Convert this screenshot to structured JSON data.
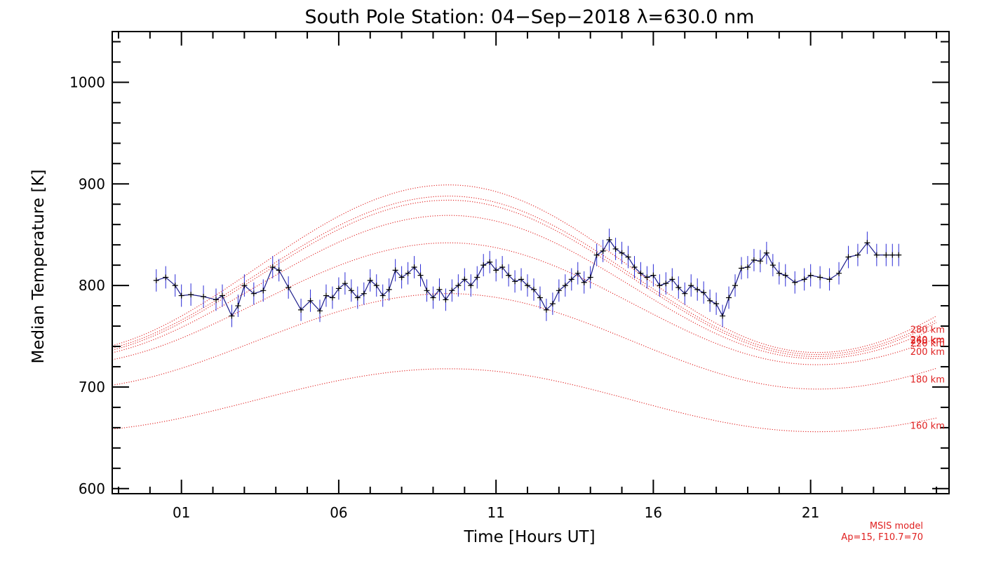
{
  "chart_data": {
    "type": "line",
    "title": "South Pole Station: 04−Sep−2018 λ=630.0 nm",
    "xlabel": "Time [Hours UT]",
    "ylabel": "Median Temperature [K]",
    "xlim": [
      -1.2,
      25.4
    ],
    "ylim": [
      595,
      1050
    ],
    "xticks": [
      {
        "value": 1,
        "label": "01"
      },
      {
        "value": 6,
        "label": "06"
      },
      {
        "value": 11,
        "label": "11"
      },
      {
        "value": 16,
        "label": "16"
      },
      {
        "value": 21,
        "label": "21"
      }
    ],
    "yticks": [
      {
        "value": 600,
        "label": "600"
      },
      {
        "value": 700,
        "label": "700"
      },
      {
        "value": 800,
        "label": "800"
      },
      {
        "value": 900,
        "label": "900"
      },
      {
        "value": 1000,
        "label": "1000"
      }
    ],
    "grid": false,
    "model_curves": [
      {
        "name": "160 km",
        "label": "160 km",
        "min": 656,
        "max": 718,
        "t_max": 9.5,
        "t_min": 21.2
      },
      {
        "name": "180 km",
        "label": "180 km",
        "min": 698,
        "max": 792,
        "t_max": 9.5,
        "t_min": 21.2
      },
      {
        "name": "200 km",
        "label": "200 km",
        "min": 722,
        "max": 842,
        "t_max": 9.5,
        "t_min": 21.2
      },
      {
        "name": "220 km",
        "label": "220 km",
        "min": 728,
        "max": 869,
        "t_max": 9.5,
        "t_min": 21.2
      },
      {
        "name": "240 km",
        "label": "240 km",
        "min": 730,
        "max": 884,
        "t_max": 9.5,
        "t_min": 21.2
      },
      {
        "name": "260 km",
        "label": "260 km",
        "min": 732,
        "max": 888,
        "t_max": 9.5,
        "t_min": 21.2
      },
      {
        "name": "280 km",
        "label": "280 km",
        "min": 734,
        "max": 899,
        "t_max": 9.5,
        "t_min": 21.2
      }
    ],
    "series": [
      {
        "name": "Median temperature",
        "error": 11,
        "x": [
          0.2,
          0.5,
          0.8,
          1.0,
          1.3,
          1.7,
          2.1,
          2.3,
          2.6,
          2.8,
          3.0,
          3.3,
          3.6,
          3.9,
          4.1,
          4.4,
          4.8,
          5.1,
          5.4,
          5.6,
          5.8,
          6.0,
          6.2,
          6.4,
          6.6,
          6.8,
          7.0,
          7.2,
          7.4,
          7.6,
          7.8,
          8.0,
          8.2,
          8.4,
          8.6,
          8.8,
          9.0,
          9.2,
          9.4,
          9.6,
          9.8,
          10.0,
          10.2,
          10.4,
          10.6,
          10.8,
          11.0,
          11.2,
          11.4,
          11.6,
          11.8,
          12.0,
          12.2,
          12.4,
          12.6,
          12.8,
          13.0,
          13.2,
          13.4,
          13.6,
          13.8,
          14.0,
          14.2,
          14.4,
          14.6,
          14.8,
          15.0,
          15.2,
          15.4,
          15.6,
          15.8,
          16.0,
          16.2,
          16.4,
          16.6,
          16.8,
          17.0,
          17.2,
          17.4,
          17.6,
          17.8,
          18.0,
          18.2,
          18.4,
          18.6,
          18.8,
          19.0,
          19.2,
          19.4,
          19.6,
          19.8,
          20.0,
          20.2,
          20.5,
          20.8,
          21.0,
          21.3,
          21.6,
          21.9,
          22.2,
          22.5,
          22.8,
          23.1,
          23.4,
          23.6,
          23.8
        ],
        "y": [
          805,
          808,
          800,
          790,
          791,
          789,
          786,
          790,
          770,
          780,
          800,
          792,
          795,
          818,
          815,
          798,
          776,
          785,
          775,
          790,
          788,
          797,
          802,
          795,
          788,
          792,
          805,
          800,
          790,
          796,
          815,
          808,
          812,
          818,
          810,
          795,
          788,
          796,
          786,
          795,
          800,
          806,
          800,
          808,
          820,
          823,
          815,
          818,
          810,
          804,
          806,
          800,
          796,
          788,
          776,
          782,
          795,
          800,
          806,
          812,
          803,
          808,
          830,
          834,
          845,
          836,
          832,
          828,
          818,
          812,
          808,
          810,
          800,
          802,
          806,
          798,
          792,
          800,
          796,
          793,
          785,
          782,
          770,
          788,
          800,
          817,
          818,
          825,
          824,
          832,
          820,
          812,
          810,
          803,
          806,
          810,
          808,
          806,
          812,
          828,
          830,
          842,
          830,
          830,
          830,
          830
        ]
      }
    ],
    "footnote": {
      "line1": "MSIS model",
      "line2": "Ap=15, F10.7=70"
    }
  },
  "colors": {
    "data_line": "#1a1a8a",
    "error_bar": "#2b2bd6",
    "marker": "#000000",
    "model": "#e02020",
    "axis": "#000000"
  }
}
